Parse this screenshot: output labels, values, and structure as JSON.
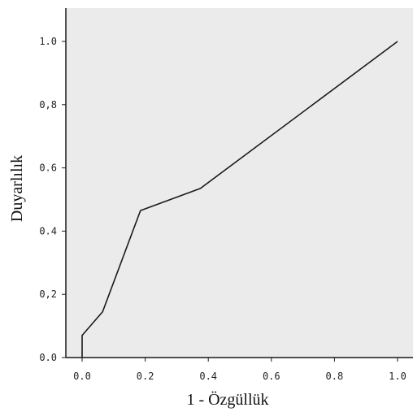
{
  "chart_data": {
    "type": "line",
    "title": "",
    "xlabel": "1 - Özgüllük",
    "ylabel": "Duyarlılık",
    "xlim": [
      0,
      1
    ],
    "ylim": [
      0,
      1
    ],
    "grid": false,
    "x_ticks": [
      "0.0",
      "0.2",
      "0.4",
      "0.6",
      "0.8",
      "1.0"
    ],
    "y_ticks": [
      "0.0",
      "0,2",
      "0.4",
      "0.6",
      "0,8",
      "1.0"
    ],
    "series": [
      {
        "x": [
          0.0,
          0.0,
          0.065,
          0.185,
          0.375,
          1.0
        ],
        "y": [
          0.0,
          0.07,
          0.145,
          0.465,
          0.535,
          1.0
        ]
      }
    ],
    "colors": {
      "plot_background": "#ebebeb",
      "line": "#1a1a1a",
      "axis": "#1a1a1a",
      "page_background": "#ffffff"
    }
  }
}
